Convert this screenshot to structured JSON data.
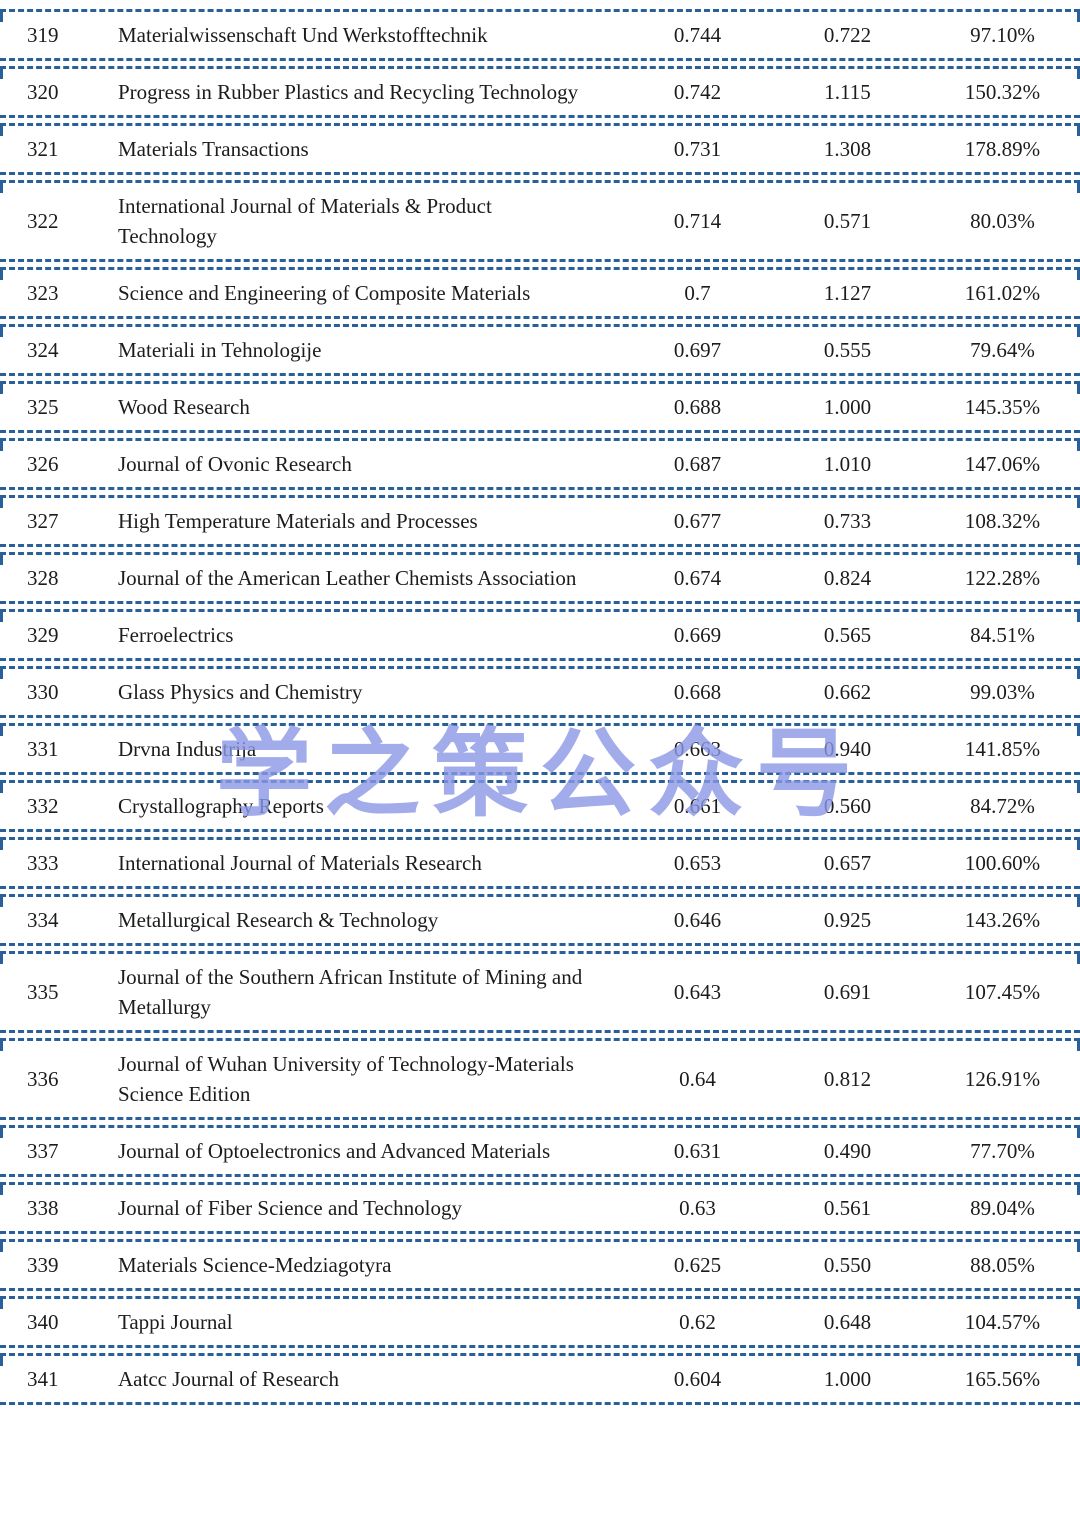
{
  "colors": {
    "border": "#2a6099",
    "watermark": "#8b98e6",
    "text": "#1c1c1c"
  },
  "watermark": {
    "text": "学之策公众号"
  },
  "table": {
    "rows": [
      {
        "rank": "319",
        "journal": "Materialwissenschaft Und Werkstofftechnik",
        "value1": "0.744",
        "value2": "0.722",
        "percent": "97.10%"
      },
      {
        "rank": "320",
        "journal": "Progress in Rubber Plastics and Recycling Technology",
        "value1": "0.742",
        "value2": "1.115",
        "percent": "150.32%"
      },
      {
        "rank": "321",
        "journal": "Materials Transactions",
        "value1": "0.731",
        "value2": "1.308",
        "percent": "178.89%"
      },
      {
        "rank": "322",
        "journal": "International Journal of Materials & Product Technology",
        "value1": "0.714",
        "value2": "0.571",
        "percent": "80.03%"
      },
      {
        "rank": "323",
        "journal": "Science and Engineering of Composite Materials",
        "value1": "0.7",
        "value2": "1.127",
        "percent": "161.02%"
      },
      {
        "rank": "324",
        "journal": "Materiali in Tehnologije",
        "value1": "0.697",
        "value2": "0.555",
        "percent": "79.64%"
      },
      {
        "rank": "325",
        "journal": "Wood Research",
        "value1": "0.688",
        "value2": "1.000",
        "percent": "145.35%"
      },
      {
        "rank": "326",
        "journal": "Journal of Ovonic Research",
        "value1": "0.687",
        "value2": "1.010",
        "percent": "147.06%"
      },
      {
        "rank": "327",
        "journal": "High Temperature Materials and Processes",
        "value1": "0.677",
        "value2": "0.733",
        "percent": "108.32%"
      },
      {
        "rank": "328",
        "journal": "Journal of the American Leather Chemists Association",
        "value1": "0.674",
        "value2": "0.824",
        "percent": "122.28%"
      },
      {
        "rank": "329",
        "journal": "Ferroelectrics",
        "value1": "0.669",
        "value2": "0.565",
        "percent": "84.51%"
      },
      {
        "rank": "330",
        "journal": "Glass Physics and Chemistry",
        "value1": "0.668",
        "value2": "0.662",
        "percent": "99.03%"
      },
      {
        "rank": "331",
        "journal": "Drvna Industrija",
        "value1": "0.663",
        "value2": "0.940",
        "percent": "141.85%"
      },
      {
        "rank": "332",
        "journal": "Crystallography Reports",
        "value1": "0.661",
        "value2": "0.560",
        "percent": "84.72%"
      },
      {
        "rank": "333",
        "journal": "International Journal of Materials Research",
        "value1": "0.653",
        "value2": "0.657",
        "percent": "100.60%"
      },
      {
        "rank": "334",
        "journal": "Metallurgical Research & Technology",
        "value1": "0.646",
        "value2": "0.925",
        "percent": "143.26%"
      },
      {
        "rank": "335",
        "journal": "Journal of the Southern African Institute of Mining and Metallurgy",
        "value1": "0.643",
        "value2": "0.691",
        "percent": "107.45%"
      },
      {
        "rank": "336",
        "journal": "Journal of Wuhan University of Technology-Materials Science Edition",
        "value1": "0.64",
        "value2": "0.812",
        "percent": "126.91%"
      },
      {
        "rank": "337",
        "journal": "Journal of Optoelectronics and Advanced Materials",
        "value1": "0.631",
        "value2": "0.490",
        "percent": "77.70%"
      },
      {
        "rank": "338",
        "journal": "Journal of Fiber Science and Technology",
        "value1": "0.63",
        "value2": "0.561",
        "percent": "89.04%"
      },
      {
        "rank": "339",
        "journal": "Materials Science-Medziagotyra",
        "value1": "0.625",
        "value2": "0.550",
        "percent": "88.05%"
      },
      {
        "rank": "340",
        "journal": "Tappi Journal",
        "value1": "0.62",
        "value2": "0.648",
        "percent": "104.57%"
      },
      {
        "rank": "341",
        "journal": "Aatcc Journal of Research",
        "value1": "0.604",
        "value2": "1.000",
        "percent": "165.56%"
      }
    ]
  }
}
